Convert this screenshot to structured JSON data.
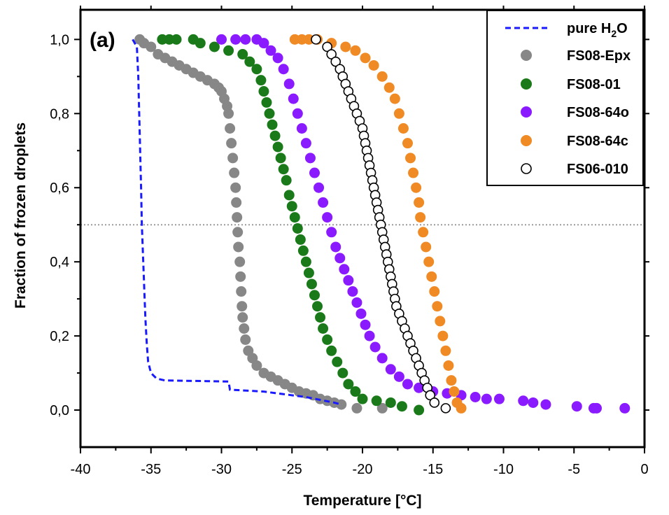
{
  "chart_data": {
    "type": "scatter",
    "panel_label": "(a)",
    "xlabel": "Temperature [°C]",
    "ylabel": "Fraction of frozen droplets",
    "xlim": [
      -40,
      0
    ],
    "ylim": [
      -0.1,
      1.08
    ],
    "x_ticks": [
      -40,
      -35,
      -30,
      -25,
      -20,
      -15,
      -10,
      -5,
      0
    ],
    "x_tick_labels": [
      "-40",
      "-35",
      "-30",
      "-25",
      "-20",
      "-15",
      "-10",
      "-5",
      "0"
    ],
    "y_ticks": [
      0,
      0.2,
      0.4,
      0.6,
      0.8,
      1.0
    ],
    "y_tick_labels": [
      "0,0",
      "0,2",
      "0,4",
      "0,6",
      "0,8",
      "1,0"
    ],
    "reference_line": {
      "y": 0.5,
      "style": "dotted",
      "color": "#999999"
    },
    "legend_position": "top-right",
    "series": [
      {
        "name": "pure H2O",
        "legend_main": "pure H",
        "legend_sub": "2",
        "legend_tail": "O",
        "style": "dashed-line",
        "color": "#1a1aff",
        "points": [
          [
            -36.3,
            1.0
          ],
          [
            -36.0,
            0.98
          ],
          [
            -35.9,
            0.9
          ],
          [
            -35.8,
            0.75
          ],
          [
            -35.7,
            0.6
          ],
          [
            -35.65,
            0.5
          ],
          [
            -35.5,
            0.35
          ],
          [
            -35.4,
            0.25
          ],
          [
            -35.3,
            0.18
          ],
          [
            -35.2,
            0.13
          ],
          [
            -35.0,
            0.1
          ],
          [
            -34.6,
            0.085
          ],
          [
            -34.0,
            0.08
          ],
          [
            -31.0,
            0.078
          ],
          [
            -29.5,
            0.077
          ],
          [
            -29.4,
            0.055
          ],
          [
            -27.0,
            0.05
          ],
          [
            -24.0,
            0.035
          ],
          [
            -22.0,
            0.02
          ],
          [
            -21.5,
            0.015
          ]
        ]
      },
      {
        "name": "FS08-Epx",
        "style": "filled-circle",
        "color": "#878787",
        "points": [
          [
            -35.8,
            1.0
          ],
          [
            -35.5,
            0.99
          ],
          [
            -35.0,
            0.98
          ],
          [
            -34.5,
            0.96
          ],
          [
            -34.0,
            0.95
          ],
          [
            -33.5,
            0.94
          ],
          [
            -33.0,
            0.93
          ],
          [
            -32.5,
            0.92
          ],
          [
            -32.0,
            0.91
          ],
          [
            -31.5,
            0.9
          ],
          [
            -31.0,
            0.89
          ],
          [
            -30.5,
            0.88
          ],
          [
            -30.2,
            0.87
          ],
          [
            -30.0,
            0.86
          ],
          [
            -29.8,
            0.84
          ],
          [
            -29.6,
            0.82
          ],
          [
            -29.5,
            0.8
          ],
          [
            -29.4,
            0.76
          ],
          [
            -29.3,
            0.72
          ],
          [
            -29.2,
            0.68
          ],
          [
            -29.1,
            0.64
          ],
          [
            -29.0,
            0.6
          ],
          [
            -28.95,
            0.56
          ],
          [
            -28.9,
            0.52
          ],
          [
            -28.85,
            0.48
          ],
          [
            -28.8,
            0.44
          ],
          [
            -28.7,
            0.4
          ],
          [
            -28.65,
            0.36
          ],
          [
            -28.6,
            0.32
          ],
          [
            -28.55,
            0.28
          ],
          [
            -28.5,
            0.25
          ],
          [
            -28.4,
            0.22
          ],
          [
            -28.3,
            0.19
          ],
          [
            -28.1,
            0.16
          ],
          [
            -27.8,
            0.14
          ],
          [
            -27.5,
            0.12
          ],
          [
            -27.0,
            0.1
          ],
          [
            -26.5,
            0.09
          ],
          [
            -26.0,
            0.08
          ],
          [
            -25.5,
            0.07
          ],
          [
            -25.0,
            0.06
          ],
          [
            -24.5,
            0.05
          ],
          [
            -24.0,
            0.045
          ],
          [
            -23.5,
            0.04
          ],
          [
            -23.0,
            0.03
          ],
          [
            -22.5,
            0.025
          ],
          [
            -22.0,
            0.02
          ],
          [
            -21.5,
            0.015
          ],
          [
            -20.4,
            0.005
          ],
          [
            -18.6,
            0.005
          ]
        ]
      },
      {
        "name": "FS08-01",
        "style": "filled-circle",
        "color": "#1a7a1a",
        "points": [
          [
            -34.2,
            1.0
          ],
          [
            -33.7,
            1.0
          ],
          [
            -33.2,
            1.0
          ],
          [
            -32.0,
            1.0
          ],
          [
            -31.5,
            0.99
          ],
          [
            -30.5,
            0.98
          ],
          [
            -29.5,
            0.97
          ],
          [
            -28.5,
            0.96
          ],
          [
            -28.0,
            0.94
          ],
          [
            -27.5,
            0.92
          ],
          [
            -27.2,
            0.89
          ],
          [
            -27.0,
            0.86
          ],
          [
            -26.8,
            0.83
          ],
          [
            -26.6,
            0.8
          ],
          [
            -26.4,
            0.77
          ],
          [
            -26.2,
            0.74
          ],
          [
            -26.0,
            0.71
          ],
          [
            -25.8,
            0.68
          ],
          [
            -25.6,
            0.65
          ],
          [
            -25.4,
            0.62
          ],
          [
            -25.2,
            0.58
          ],
          [
            -25.0,
            0.55
          ],
          [
            -24.8,
            0.52
          ],
          [
            -24.6,
            0.49
          ],
          [
            -24.4,
            0.46
          ],
          [
            -24.2,
            0.43
          ],
          [
            -24.0,
            0.4
          ],
          [
            -23.8,
            0.37
          ],
          [
            -23.6,
            0.34
          ],
          [
            -23.4,
            0.31
          ],
          [
            -23.2,
            0.28
          ],
          [
            -23.0,
            0.25
          ],
          [
            -22.8,
            0.22
          ],
          [
            -22.5,
            0.19
          ],
          [
            -22.2,
            0.16
          ],
          [
            -21.8,
            0.13
          ],
          [
            -21.4,
            0.1
          ],
          [
            -21.0,
            0.07
          ],
          [
            -20.5,
            0.05
          ],
          [
            -20.0,
            0.03
          ],
          [
            -19.0,
            0.025
          ],
          [
            -18.0,
            0.02
          ],
          [
            -17.2,
            0.01
          ],
          [
            -16.0,
            0.0
          ]
        ]
      },
      {
        "name": "FS08-64o",
        "style": "filled-circle",
        "color": "#8a1aff",
        "points": [
          [
            -30.0,
            1.0
          ],
          [
            -29.0,
            1.0
          ],
          [
            -28.3,
            1.0
          ],
          [
            -27.5,
            1.0
          ],
          [
            -27.0,
            0.99
          ],
          [
            -26.5,
            0.97
          ],
          [
            -26.0,
            0.95
          ],
          [
            -25.6,
            0.92
          ],
          [
            -25.2,
            0.88
          ],
          [
            -24.9,
            0.84
          ],
          [
            -24.6,
            0.8
          ],
          [
            -24.3,
            0.76
          ],
          [
            -24.0,
            0.72
          ],
          [
            -23.7,
            0.68
          ],
          [
            -23.4,
            0.64
          ],
          [
            -23.1,
            0.6
          ],
          [
            -22.8,
            0.56
          ],
          [
            -22.5,
            0.52
          ],
          [
            -22.2,
            0.48
          ],
          [
            -21.9,
            0.44
          ],
          [
            -21.6,
            0.41
          ],
          [
            -21.3,
            0.38
          ],
          [
            -21.0,
            0.35
          ],
          [
            -20.7,
            0.32
          ],
          [
            -20.4,
            0.29
          ],
          [
            -20.1,
            0.26
          ],
          [
            -19.8,
            0.23
          ],
          [
            -19.5,
            0.2
          ],
          [
            -19.1,
            0.17
          ],
          [
            -18.6,
            0.14
          ],
          [
            -18.0,
            0.11
          ],
          [
            -17.4,
            0.09
          ],
          [
            -16.8,
            0.07
          ],
          [
            -16.0,
            0.06
          ],
          [
            -15.0,
            0.05
          ],
          [
            -14.0,
            0.045
          ],
          [
            -13.0,
            0.04
          ],
          [
            -12.0,
            0.035
          ],
          [
            -11.2,
            0.03
          ],
          [
            -10.3,
            0.03
          ],
          [
            -8.6,
            0.025
          ],
          [
            -7.9,
            0.02
          ],
          [
            -7.0,
            0.015
          ],
          [
            -4.8,
            0.01
          ],
          [
            -3.6,
            0.005
          ],
          [
            -3.4,
            0.005
          ],
          [
            -1.4,
            0.005
          ]
        ]
      },
      {
        "name": "FS08-64c",
        "style": "filled-circle",
        "color": "#f08a24",
        "points": [
          [
            -24.8,
            1.0
          ],
          [
            -24.3,
            1.0
          ],
          [
            -23.8,
            1.0
          ],
          [
            -23.2,
            1.0
          ],
          [
            -22.2,
            0.99
          ],
          [
            -21.2,
            0.98
          ],
          [
            -20.5,
            0.97
          ],
          [
            -19.8,
            0.95
          ],
          [
            -19.2,
            0.93
          ],
          [
            -18.6,
            0.9
          ],
          [
            -18.1,
            0.87
          ],
          [
            -17.7,
            0.84
          ],
          [
            -17.4,
            0.8
          ],
          [
            -17.1,
            0.76
          ],
          [
            -16.8,
            0.72
          ],
          [
            -16.6,
            0.68
          ],
          [
            -16.4,
            0.64
          ],
          [
            -16.2,
            0.6
          ],
          [
            -16.0,
            0.56
          ],
          [
            -15.9,
            0.52
          ],
          [
            -15.7,
            0.48
          ],
          [
            -15.5,
            0.44
          ],
          [
            -15.3,
            0.4
          ],
          [
            -15.1,
            0.36
          ],
          [
            -14.9,
            0.32
          ],
          [
            -14.7,
            0.28
          ],
          [
            -14.5,
            0.24
          ],
          [
            -14.3,
            0.2
          ],
          [
            -14.1,
            0.16
          ],
          [
            -13.9,
            0.12
          ],
          [
            -13.7,
            0.08
          ],
          [
            -13.5,
            0.05
          ],
          [
            -13.3,
            0.02
          ],
          [
            -13.0,
            0.005
          ]
        ]
      },
      {
        "name": "FS06-010",
        "style": "open-circle",
        "color": "#000000",
        "points": [
          [
            -23.3,
            1.0
          ],
          [
            -22.5,
            0.98
          ],
          [
            -22.2,
            0.96
          ],
          [
            -21.9,
            0.94
          ],
          [
            -21.6,
            0.92
          ],
          [
            -21.4,
            0.9
          ],
          [
            -21.2,
            0.88
          ],
          [
            -21.0,
            0.86
          ],
          [
            -20.8,
            0.84
          ],
          [
            -20.6,
            0.82
          ],
          [
            -20.4,
            0.8
          ],
          [
            -20.2,
            0.78
          ],
          [
            -20.0,
            0.76
          ],
          [
            -19.9,
            0.74
          ],
          [
            -19.8,
            0.72
          ],
          [
            -19.7,
            0.7
          ],
          [
            -19.6,
            0.68
          ],
          [
            -19.5,
            0.66
          ],
          [
            -19.4,
            0.64
          ],
          [
            -19.3,
            0.62
          ],
          [
            -19.2,
            0.6
          ],
          [
            -19.1,
            0.58
          ],
          [
            -19.0,
            0.56
          ],
          [
            -18.9,
            0.54
          ],
          [
            -18.8,
            0.52
          ],
          [
            -18.7,
            0.5
          ],
          [
            -18.6,
            0.48
          ],
          [
            -18.5,
            0.46
          ],
          [
            -18.4,
            0.44
          ],
          [
            -18.3,
            0.42
          ],
          [
            -18.2,
            0.4
          ],
          [
            -18.1,
            0.38
          ],
          [
            -18.0,
            0.36
          ],
          [
            -17.9,
            0.34
          ],
          [
            -17.8,
            0.32
          ],
          [
            -17.7,
            0.3
          ],
          [
            -17.6,
            0.28
          ],
          [
            -17.4,
            0.26
          ],
          [
            -17.2,
            0.24
          ],
          [
            -17.0,
            0.22
          ],
          [
            -16.8,
            0.2
          ],
          [
            -16.6,
            0.18
          ],
          [
            -16.4,
            0.16
          ],
          [
            -16.2,
            0.14
          ],
          [
            -16.0,
            0.12
          ],
          [
            -15.8,
            0.1
          ],
          [
            -15.6,
            0.08
          ],
          [
            -15.4,
            0.06
          ],
          [
            -15.2,
            0.04
          ],
          [
            -14.9,
            0.02
          ],
          [
            -14.1,
            0.005
          ]
        ]
      }
    ]
  }
}
